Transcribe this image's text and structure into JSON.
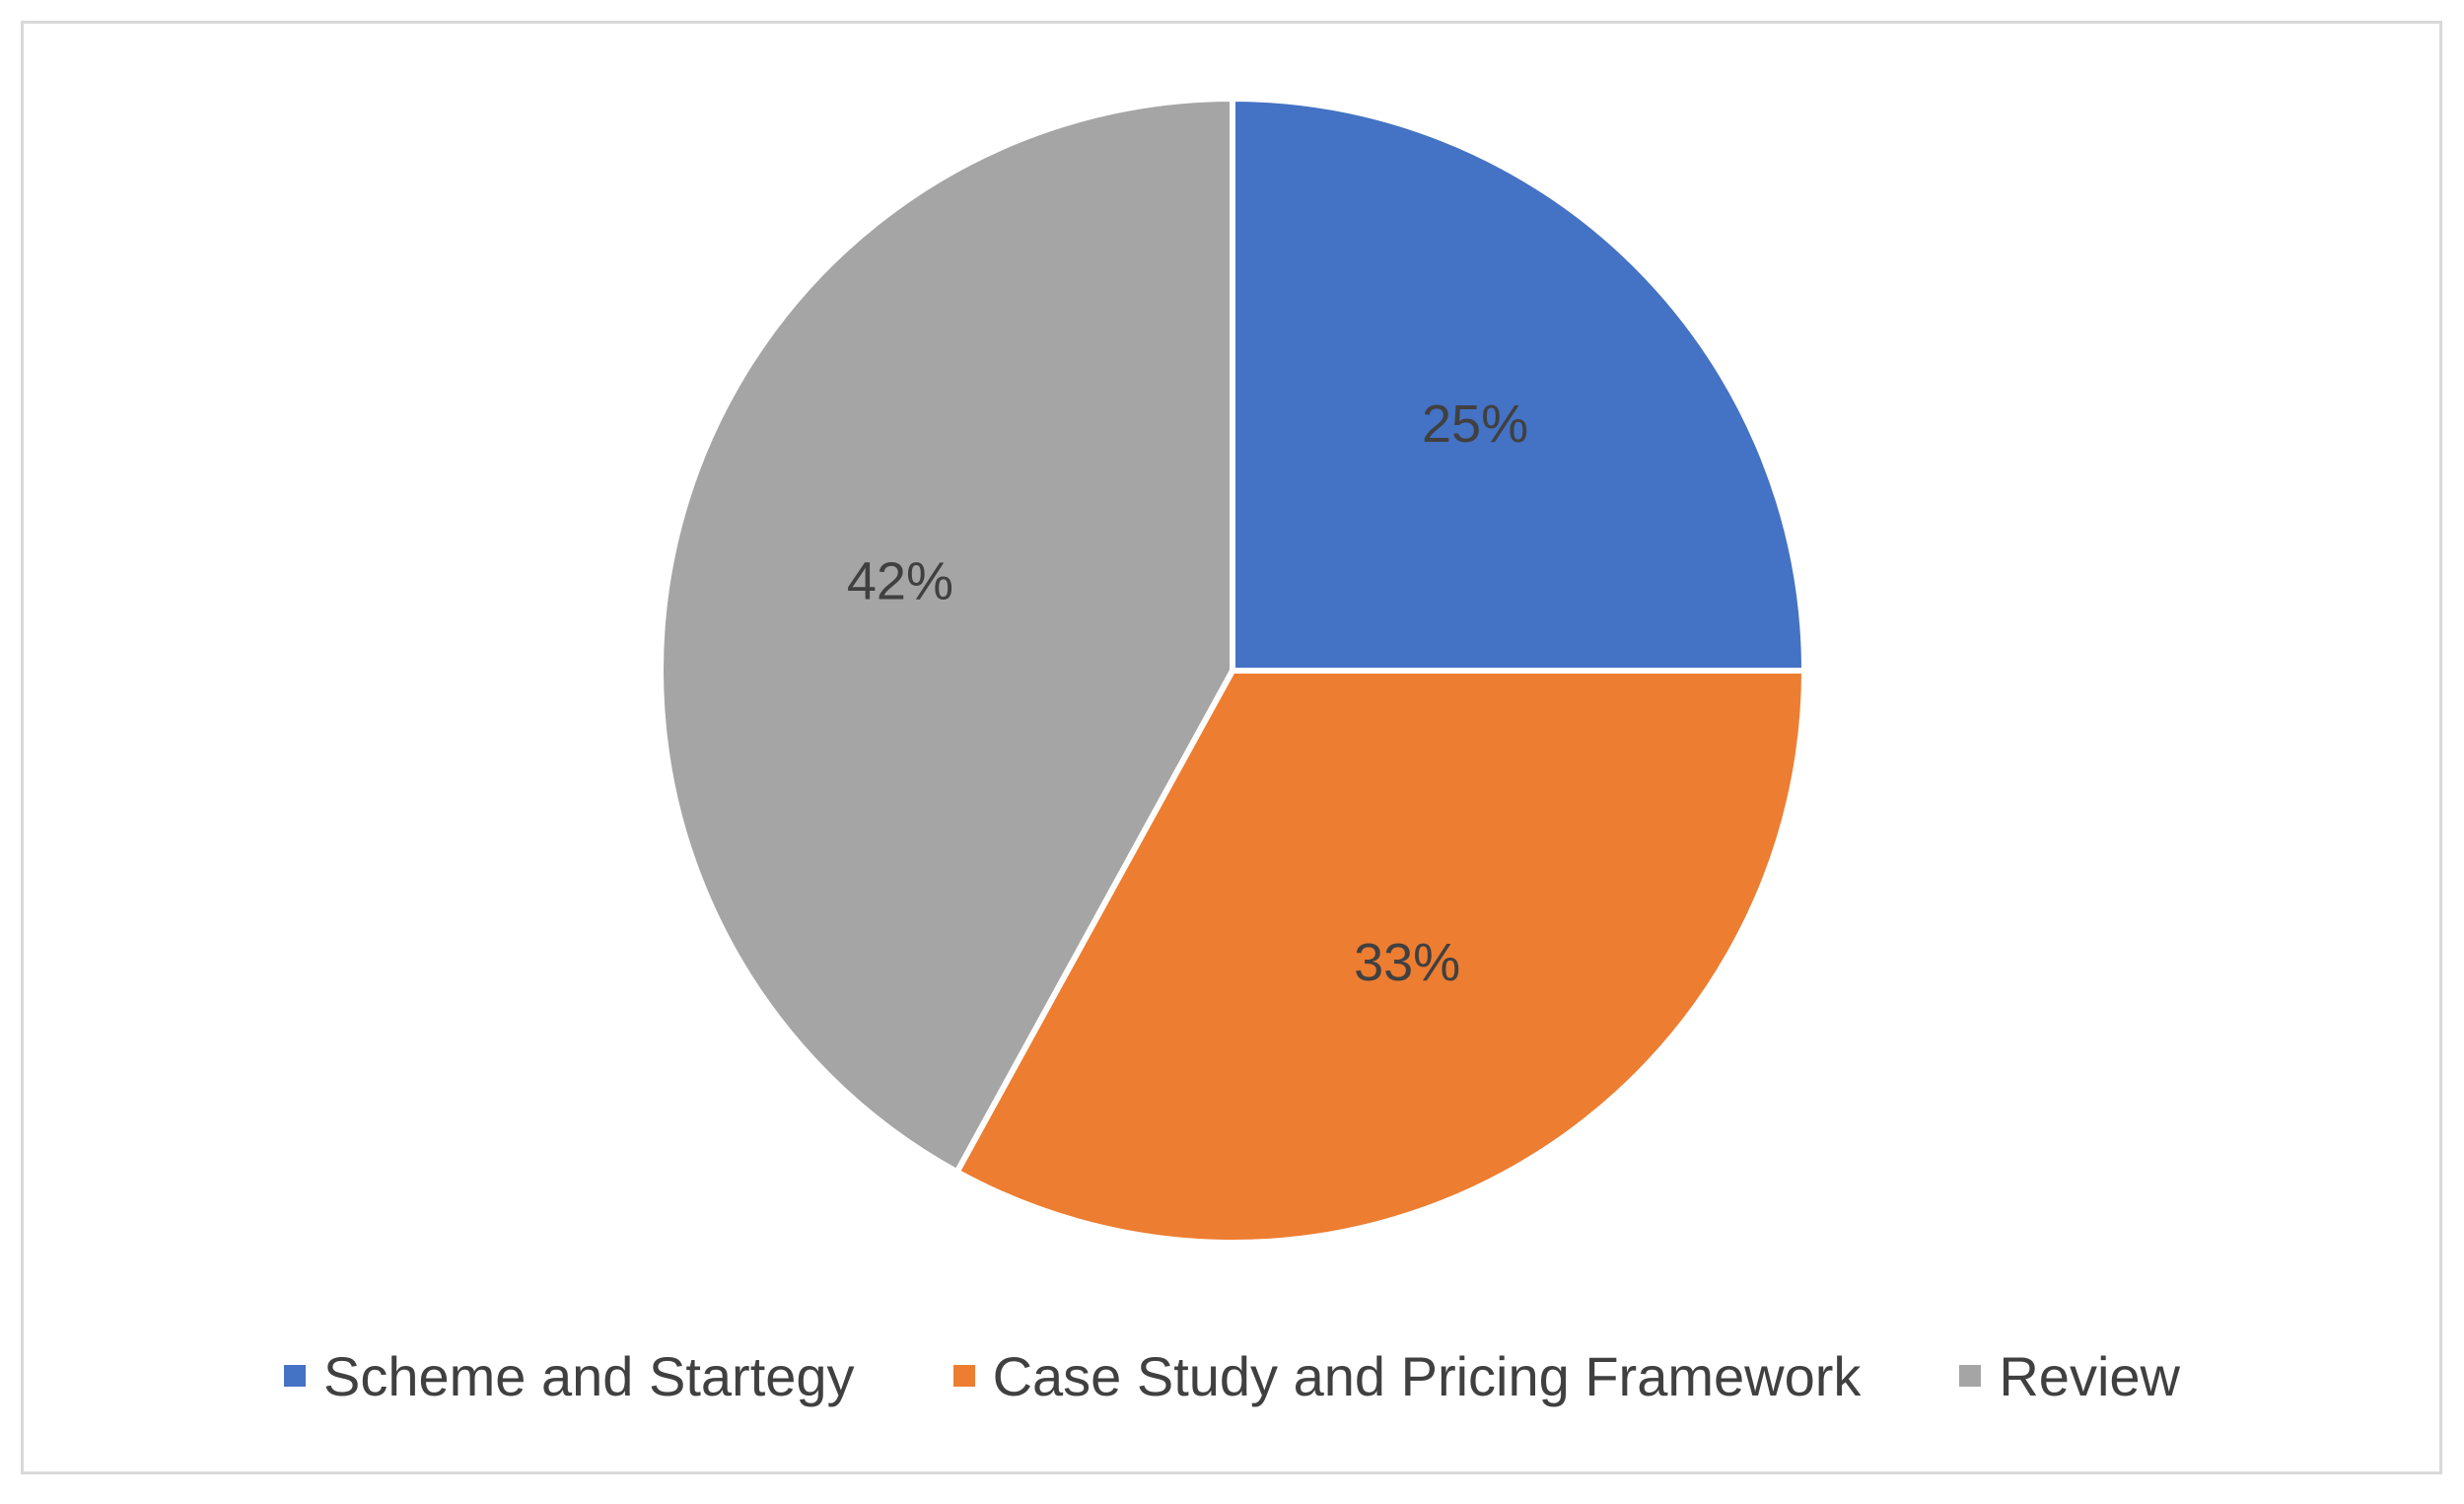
{
  "chart_data": {
    "type": "pie",
    "slices": [
      {
        "label": "Scheme and Startegy",
        "value": 25,
        "value_label": "25%",
        "color": "#4472C4"
      },
      {
        "label": "Case Study and Pricing Framework",
        "value": 33,
        "value_label": "33%",
        "color": "#ED7D31"
      },
      {
        "label": "Review",
        "value": 42,
        "value_label": "42%",
        "color": "#A5A5A5"
      }
    ],
    "legend_position": "bottom",
    "start_angle": "12 o'clock, clockwise",
    "slice_border_color": "#ffffff"
  },
  "legend": {
    "items": [
      {
        "label": "Scheme and Startegy",
        "color": "#4472C4"
      },
      {
        "label": "Case Study and Pricing Framework",
        "color": "#ED7D31"
      },
      {
        "label": "Review",
        "color": "#A5A5A5"
      }
    ]
  }
}
